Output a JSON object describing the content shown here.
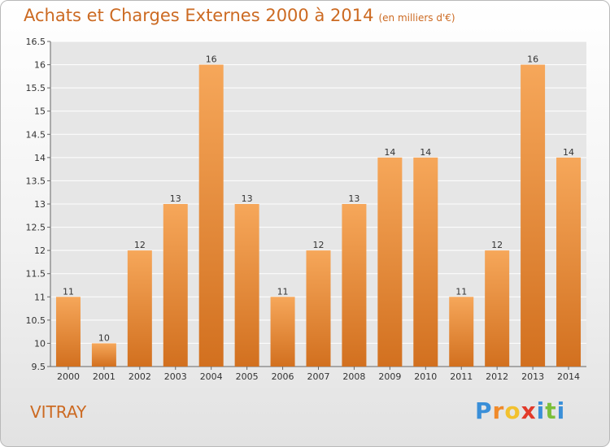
{
  "title": "Achats et Charges Externes 2000 à 2014",
  "subtitle": "(en milliers d'€)",
  "place": "VITRAY",
  "logo": {
    "letters": [
      "P",
      "r",
      "o",
      "x",
      "i",
      "t",
      "i"
    ],
    "colors": [
      "#3a8fd8",
      "#f08a2a",
      "#f2c12e",
      "#e23a2a",
      "#3a8fd8",
      "#7bbf3a",
      "#3a8fd8"
    ]
  },
  "colors": {
    "bar_top": "#f6a75a",
    "bar_bottom": "#d2701f",
    "title": "#cc6a22"
  },
  "chart_data": {
    "type": "bar",
    "categories": [
      "2000",
      "2001",
      "2002",
      "2003",
      "2004",
      "2005",
      "2006",
      "2007",
      "2008",
      "2009",
      "2010",
      "2011",
      "2012",
      "2013",
      "2014"
    ],
    "values": [
      11,
      10,
      12,
      13,
      16,
      13,
      11,
      12,
      13,
      14,
      14,
      11,
      12,
      16,
      14
    ],
    "ylim": [
      9.5,
      16.5
    ],
    "yticks": [
      "9.5",
      "10",
      "10.5",
      "11",
      "11.5",
      "12",
      "12.5",
      "13",
      "13.5",
      "14",
      "14.5",
      "15",
      "15.5",
      "16",
      "16.5"
    ],
    "grid": true
  }
}
